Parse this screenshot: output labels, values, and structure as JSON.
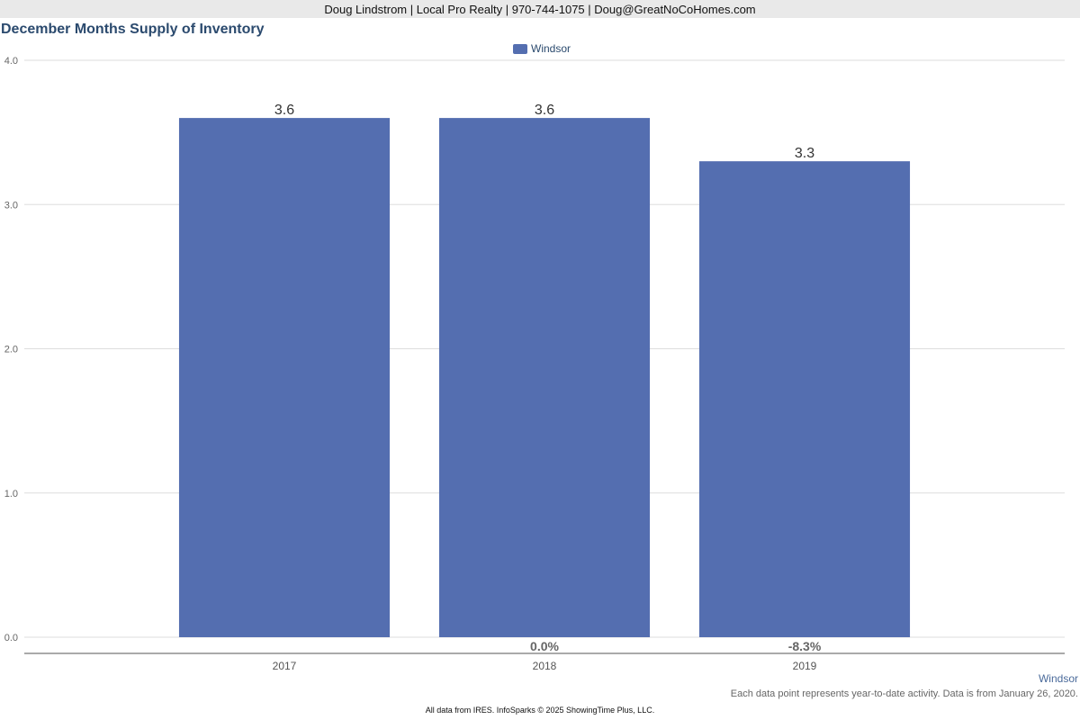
{
  "header": {
    "contact": "Doug Lindstrom | Local Pro Realty | 970-744-1075 | Doug@GreatNoCoHomes.com"
  },
  "chart_data": {
    "type": "bar",
    "title": "December Months Supply of Inventory",
    "categories": [
      "2017",
      "2018",
      "2019"
    ],
    "series": [
      {
        "name": "Windsor",
        "values": [
          3.6,
          3.6,
          3.3
        ],
        "color": "#546eb0"
      }
    ],
    "value_labels": [
      "3.6",
      "3.6",
      "3.3"
    ],
    "change_labels": [
      "",
      "0.0%",
      "-8.3%"
    ],
    "y_ticks": [
      "0.0",
      "1.0",
      "2.0",
      "3.0",
      "4.0"
    ],
    "ylim": [
      0,
      4
    ],
    "grid": true,
    "legend_position": "top-center"
  },
  "footer": {
    "series_label": "Windsor",
    "note": "Each data point represents year-to-date activity. Data is from January 26, 2020.",
    "credit": "All data from IRES. InfoSparks © 2025 ShowingTime Plus, LLC."
  }
}
